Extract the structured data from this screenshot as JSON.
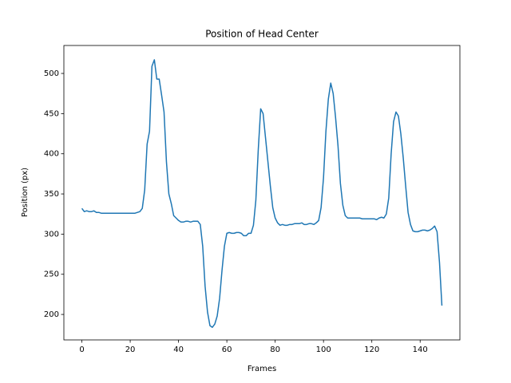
{
  "chart_data": {
    "type": "line",
    "title": "Position of Head Center",
    "x_label": "Frames",
    "y_label": "Position (px)",
    "x": [
      0,
      1,
      2,
      3,
      4,
      5,
      6,
      7,
      8,
      9,
      10,
      11,
      12,
      13,
      14,
      15,
      16,
      17,
      18,
      19,
      20,
      21,
      22,
      23,
      24,
      25,
      26,
      27,
      28,
      29,
      30,
      31,
      32,
      33,
      34,
      35,
      36,
      37,
      38,
      39,
      40,
      41,
      42,
      43,
      44,
      45,
      46,
      47,
      48,
      49,
      50,
      51,
      52,
      53,
      54,
      55,
      56,
      57,
      58,
      59,
      60,
      61,
      62,
      63,
      64,
      65,
      66,
      67,
      68,
      69,
      70,
      71,
      72,
      73,
      74,
      75,
      76,
      77,
      78,
      79,
      80,
      81,
      82,
      83,
      84,
      85,
      86,
      87,
      88,
      89,
      90,
      91,
      92,
      93,
      94,
      95,
      96,
      97,
      98,
      99,
      100,
      101,
      102,
      103,
      104,
      105,
      106,
      107,
      108,
      109,
      110,
      111,
      112,
      113,
      114,
      115,
      116,
      117,
      118,
      119,
      120,
      121,
      122,
      123,
      124,
      125,
      126,
      127,
      128,
      129,
      130,
      131,
      132,
      133,
      134,
      135,
      136,
      137,
      138,
      139,
      140,
      141,
      142,
      143,
      144,
      145,
      146,
      147,
      148,
      149
    ],
    "series": [
      {
        "color": "#1f77b4",
        "values": [
          332,
          328,
          329,
          328,
          328,
          329,
          327,
          327,
          326,
          326,
          326,
          326,
          326,
          326,
          326,
          326,
          326,
          326,
          326,
          326,
          326,
          326,
          326,
          327,
          328,
          332,
          355,
          412,
          428,
          509,
          517,
          493,
          493,
          473,
          452,
          390,
          350,
          338,
          323,
          320,
          317,
          315,
          315,
          316,
          316,
          315,
          316,
          316,
          316,
          312,
          285,
          235,
          203,
          186,
          184,
          188,
          198,
          220,
          255,
          285,
          301,
          302,
          301,
          301,
          302,
          302,
          301,
          298,
          298,
          301,
          301,
          311,
          342,
          405,
          456,
          450,
          420,
          390,
          360,
          333,
          320,
          314,
          311,
          312,
          311,
          311,
          312,
          312,
          313,
          313,
          313,
          314,
          312,
          312,
          313,
          313,
          312,
          314,
          317,
          333,
          370,
          428,
          468,
          488,
          475,
          445,
          410,
          363,
          336,
          323,
          320,
          320,
          320,
          320,
          320,
          320,
          319,
          319,
          319,
          319,
          319,
          319,
          318,
          320,
          321,
          320,
          325,
          345,
          400,
          440,
          452,
          447,
          425,
          395,
          360,
          327,
          312,
          304,
          303,
          303,
          304,
          305,
          305,
          304,
          305,
          307,
          310,
          303,
          265,
          211
        ]
      }
    ],
    "xlim": [
      -7.45,
      156.45
    ],
    "ylim": [
      168.3,
      534.8
    ],
    "xticks": [
      0,
      20,
      40,
      60,
      80,
      100,
      120,
      140
    ],
    "yticks": [
      200,
      250,
      300,
      350,
      400,
      450,
      500
    ]
  }
}
